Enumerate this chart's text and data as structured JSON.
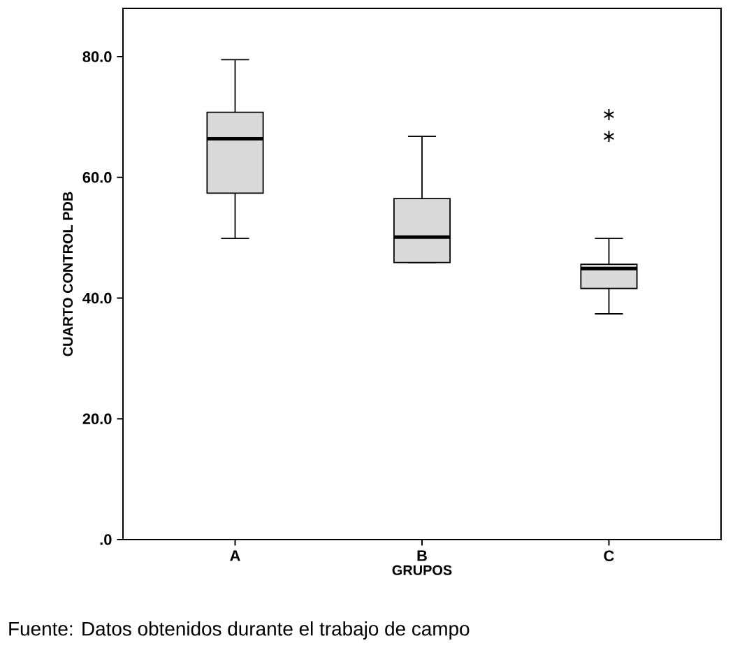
{
  "chart_data": {
    "type": "box",
    "xlabel": "GRUPOS",
    "ylabel": "CUARTO CONTROL PDB",
    "categories": [
      "A",
      "B",
      "C"
    ],
    "color": "#d9d9d9",
    "boxes": [
      {
        "low": 49.9,
        "q1": 57.4,
        "median": 66.4,
        "q3": 70.8,
        "high": 79.5
      },
      {
        "low": 45.9,
        "q1": 45.9,
        "median": 50.1,
        "q3": 56.5,
        "high": 66.8
      },
      {
        "low": 37.4,
        "q1": 41.6,
        "median": 44.9,
        "q3": 45.6,
        "high": 49.9,
        "outliers": [
          66.8,
          70.4
        ]
      }
    ],
    "ylim": [
      0,
      88
    ],
    "yticks": [
      {
        "value": 0,
        "label": ".0"
      },
      {
        "value": 20,
        "label": "20.0"
      },
      {
        "value": 40,
        "label": "40.0"
      },
      {
        "value": 60,
        "label": "60.0"
      },
      {
        "value": 80,
        "label": "80.0"
      }
    ],
    "annotations": [
      "Fuente: Datos obtenidos durante el trabajo de campo"
    ]
  }
}
